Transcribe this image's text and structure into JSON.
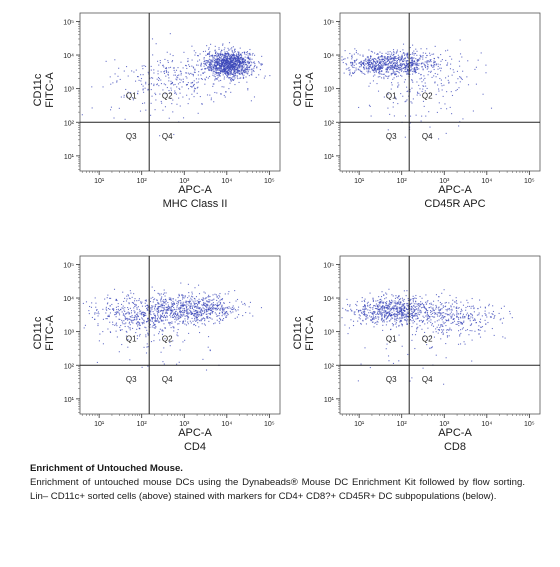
{
  "panels": [
    {
      "id": "p1",
      "ylabel_line1": "CD11c",
      "ylabel_line2": "FITC-A",
      "xlabel_line1": "APC-A",
      "xlabel_line2": "MHC Class II",
      "quadrants": [
        "Q1",
        "Q2",
        "Q3",
        "Q4"
      ],
      "population": "mhc"
    },
    {
      "id": "p2",
      "ylabel_line1": "CD11c",
      "ylabel_line2": "FITC-A",
      "xlabel_line1": "APC-A",
      "xlabel_line2": "CD45R APC",
      "quadrants": [
        "Q1",
        "Q2",
        "Q3",
        "Q4"
      ],
      "population": "cd45r"
    },
    {
      "id": "p3",
      "ylabel_line1": "CD11c",
      "ylabel_line2": "FITC-A",
      "xlabel_line1": "APC-A",
      "xlabel_line2": "CD4",
      "quadrants": [
        "Q1",
        "Q2",
        "Q3",
        "Q4"
      ],
      "population": "cd4"
    },
    {
      "id": "p4",
      "ylabel_line1": "CD11c",
      "ylabel_line2": "FITC-A",
      "xlabel_line1": "APC-A",
      "xlabel_line2": "CD8",
      "quadrants": [
        "Q1",
        "Q2",
        "Q3",
        "Q4"
      ],
      "population": "cd8"
    }
  ],
  "chart_data": {
    "type": "scatter",
    "x_ticks": [
      "10¹",
      "10²",
      "10³",
      "10⁴",
      "10⁵"
    ],
    "y_ticks": [
      "10⁵",
      "10⁴",
      "10³",
      "10²",
      "10¹"
    ],
    "x_scale": "log",
    "y_scale": "log",
    "gate_x": 150,
    "gate_y": 100,
    "dot_color": "#3a45b8"
  },
  "caption": {
    "title": "Enrichment of Untouched Mouse.",
    "body": "Enrichment of untouched mouse DCs using the Dynabeads® Mouse DC Enrichment Kit followed by flow sorting. Lin– CD11c+ sorted cells (above) stained with markers for CD4+ CD8?+ CD45R+ DC subpopulations (below)."
  }
}
